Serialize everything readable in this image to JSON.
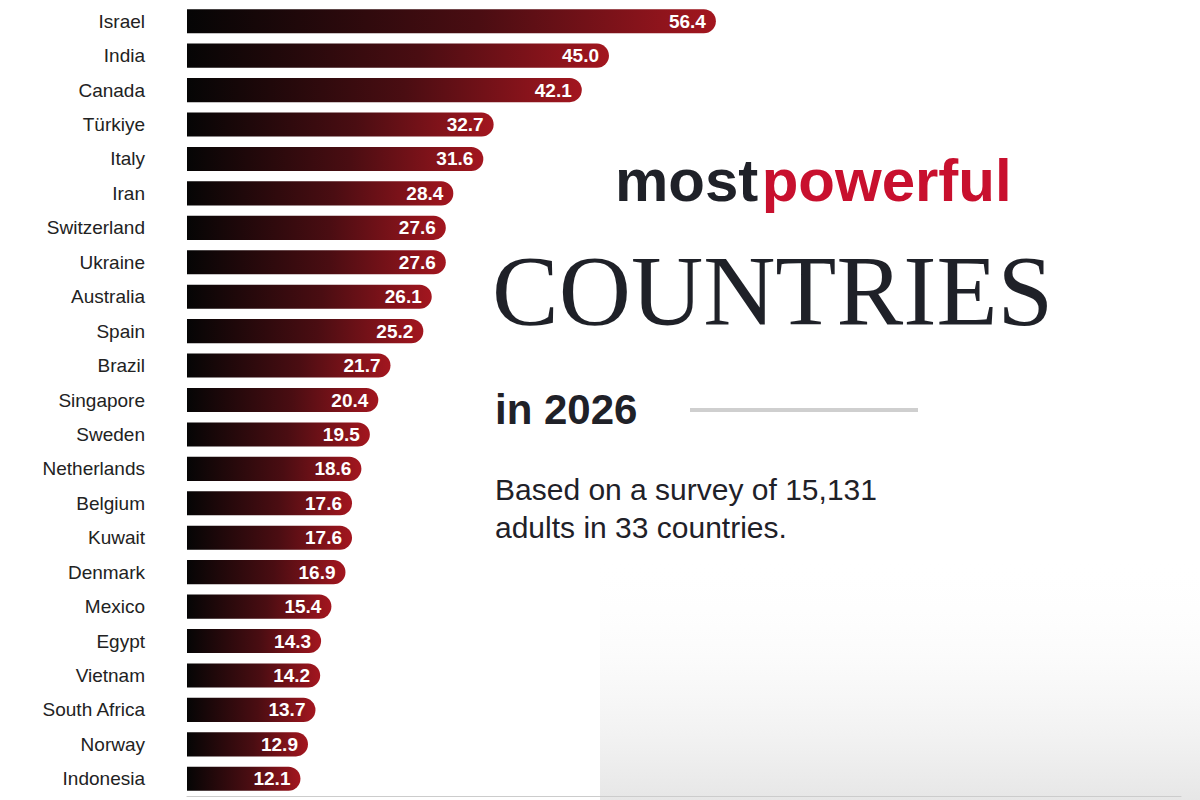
{
  "chart_data": {
    "type": "bar",
    "title": "most powerful COUNTRIES in 2026",
    "subtitle": "Based on a survey of 15,131 adults in 33 countries.",
    "orientation": "horizontal",
    "categories": [
      "Israel",
      "India",
      "Canada",
      "Türkiye",
      "Italy",
      "Iran",
      "Switzerland",
      "Ukraine",
      "Australia",
      "Spain",
      "Brazil",
      "Singapore",
      "Sweden",
      "Netherlands",
      "Belgium",
      "Kuwait",
      "Denmark",
      "Mexico",
      "Egypt",
      "Vietnam",
      "South Africa",
      "Norway",
      "Indonesia"
    ],
    "values": [
      56.4,
      45.0,
      42.1,
      32.7,
      31.6,
      28.4,
      27.6,
      27.6,
      26.1,
      25.2,
      21.7,
      20.4,
      19.5,
      18.6,
      17.6,
      17.6,
      16.9,
      15.4,
      14.3,
      14.2,
      13.7,
      12.9,
      12.1
    ],
    "value_labels": [
      "56.4",
      "45.0",
      "42.1",
      "32.7",
      "31.6",
      "28.4",
      "27.6",
      "27.6",
      "26.1",
      "25.2",
      "21.7",
      "20.4",
      "19.5",
      "18.6",
      "17.6",
      "17.6",
      "16.9",
      "15.4",
      "14.3",
      "14.2",
      "13.7",
      "12.9",
      "12.1"
    ],
    "color": "#a3161f",
    "xlim": [
      0,
      106
    ],
    "grid": false,
    "data_labels": true,
    "tick_labels": "y"
  }
}
